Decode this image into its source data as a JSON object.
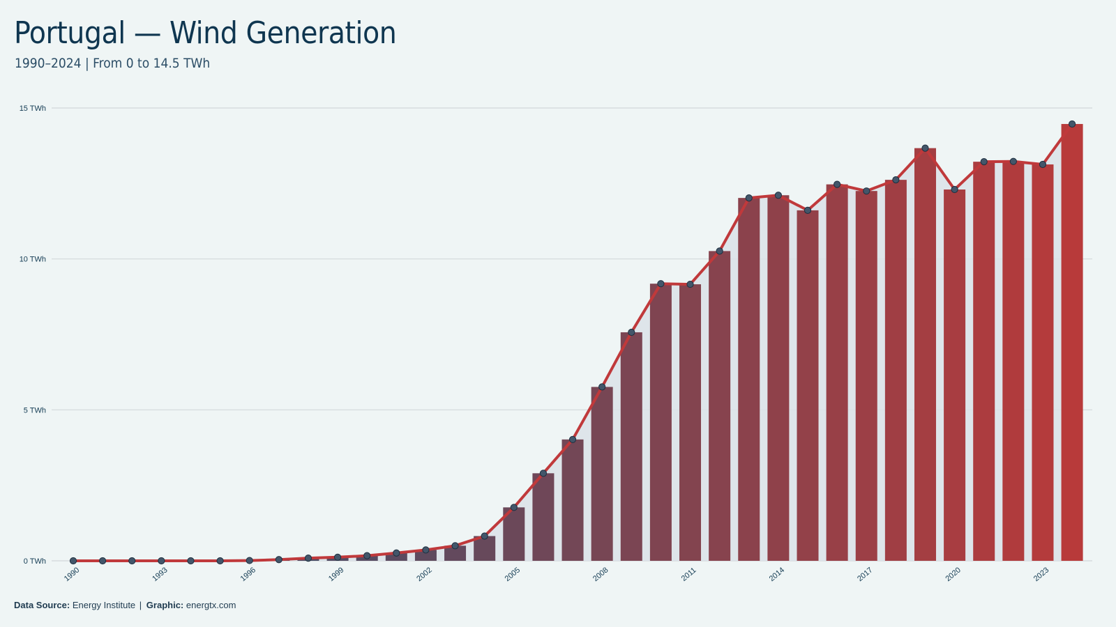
{
  "header": {
    "title": "Portugal — Wind Generation",
    "subtitle": "1990–2024 | From 0 to 14.5 TWh"
  },
  "footer": {
    "source_label": "Data Source:",
    "source_value": "Energy Institute",
    "separator": "|",
    "graphic_label": "Graphic:",
    "graphic_value": "energtx.com"
  },
  "colors": {
    "background": "#eff5f5",
    "gradient_start": "#2e5372",
    "gradient_end": "#b83a3a",
    "line": "#c0393b",
    "marker_fill": "#43566a",
    "area_fill": "#dbe2e7",
    "grid": "#d2d8db",
    "text": "#123a52"
  },
  "chart_data": {
    "type": "bar",
    "x": [
      1990,
      1991,
      1992,
      1993,
      1994,
      1995,
      1996,
      1997,
      1998,
      1999,
      2000,
      2001,
      2002,
      2003,
      2004,
      2005,
      2006,
      2007,
      2008,
      2009,
      2010,
      2011,
      2012,
      2013,
      2014,
      2015,
      2016,
      2017,
      2018,
      2019,
      2020,
      2021,
      2022,
      2023,
      2024
    ],
    "series": [
      {
        "values": [
          0.0,
          0.0,
          0.0,
          0.0,
          0.0,
          0.0,
          0.01,
          0.04,
          0.09,
          0.12,
          0.17,
          0.26,
          0.36,
          0.5,
          0.82,
          1.77,
          2.9,
          4.02,
          5.76,
          7.57,
          9.18,
          9.16,
          10.26,
          12.02,
          12.11,
          11.61,
          12.47,
          12.25,
          12.62,
          13.67,
          12.3,
          13.22,
          13.23,
          13.13,
          14.47
        ]
      }
    ],
    "overlay": "line with markers and shaded area, same values",
    "ylim": [
      0,
      15
    ],
    "yticks": [
      0,
      5,
      10,
      15
    ],
    "ytick_labels": [
      "0 TWh",
      "5 TWh",
      "10 TWh",
      "15 TWh"
    ],
    "xtick_years": [
      1990,
      1993,
      1996,
      1999,
      2002,
      2005,
      2008,
      2011,
      2014,
      2017,
      2020,
      2023
    ],
    "grid": true,
    "legend": "none"
  }
}
